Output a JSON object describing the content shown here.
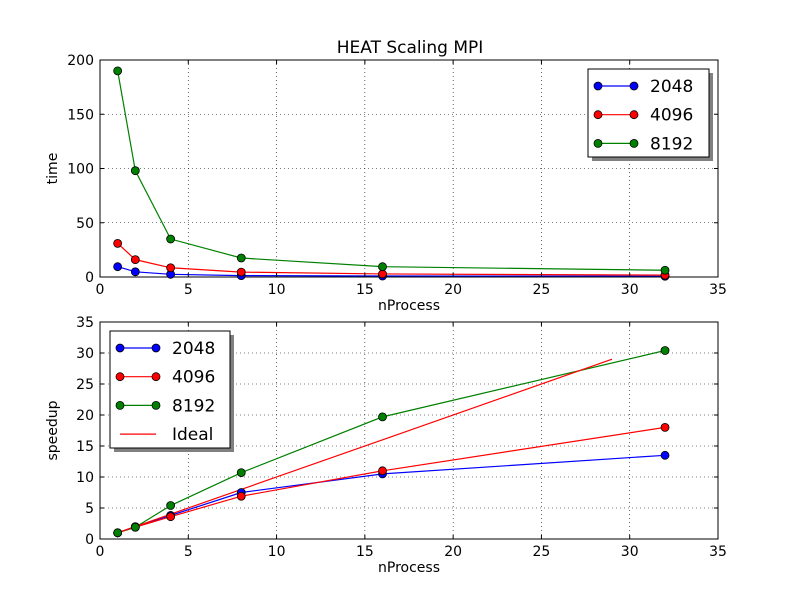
{
  "chart_data": [
    {
      "type": "line",
      "title": "HEAT Scaling MPI",
      "xlabel": "nProcess",
      "ylabel": "time",
      "xlim": [
        0,
        35
      ],
      "ylim": [
        0,
        200
      ],
      "xticks": [
        0,
        5,
        10,
        15,
        20,
        25,
        30,
        35
      ],
      "yticks": [
        0,
        50,
        100,
        150,
        200
      ],
      "grid": true,
      "legend_position": "top-right",
      "series": [
        {
          "name": "2048",
          "color": "#0000ff",
          "marker": "circle",
          "x": [
            1,
            2,
            4,
            8,
            16,
            32
          ],
          "y": [
            9.5,
            4.8,
            2.5,
            1.3,
            0.9,
            0.7
          ]
        },
        {
          "name": "4096",
          "color": "#ff0000",
          "marker": "circle",
          "x": [
            1,
            2,
            4,
            8,
            16,
            32
          ],
          "y": [
            31,
            16,
            8.5,
            4.5,
            2.8,
            1.7
          ]
        },
        {
          "name": "8192",
          "color": "#008000",
          "marker": "circle",
          "x": [
            1,
            2,
            4,
            8,
            16,
            32
          ],
          "y": [
            190,
            98,
            35,
            17.5,
            9.5,
            6.2
          ]
        }
      ]
    },
    {
      "type": "line",
      "title": "",
      "xlabel": "nProcess",
      "ylabel": "speedup",
      "xlim": [
        0,
        35
      ],
      "ylim": [
        0,
        35
      ],
      "xticks": [
        0,
        5,
        10,
        15,
        20,
        25,
        30,
        35
      ],
      "yticks": [
        0,
        5,
        10,
        15,
        20,
        25,
        30,
        35
      ],
      "grid": true,
      "legend_position": "top-left",
      "series": [
        {
          "name": "2048",
          "color": "#0000ff",
          "marker": "circle",
          "x": [
            1,
            2,
            4,
            8,
            16,
            32
          ],
          "y": [
            1,
            2,
            3.8,
            7.5,
            10.5,
            13.5
          ]
        },
        {
          "name": "4096",
          "color": "#ff0000",
          "marker": "circle",
          "x": [
            1,
            2,
            4,
            8,
            16,
            32
          ],
          "y": [
            1,
            1.9,
            3.6,
            6.9,
            11,
            18
          ]
        },
        {
          "name": "8192",
          "color": "#008000",
          "marker": "circle",
          "x": [
            1,
            2,
            4,
            8,
            16,
            32
          ],
          "y": [
            1,
            1.9,
            5.4,
            10.7,
            19.7,
            30.4
          ]
        },
        {
          "name": "Ideal",
          "color": "#ff0000",
          "marker": "none",
          "x": [
            1,
            29
          ],
          "y": [
            1,
            29
          ]
        }
      ]
    }
  ]
}
